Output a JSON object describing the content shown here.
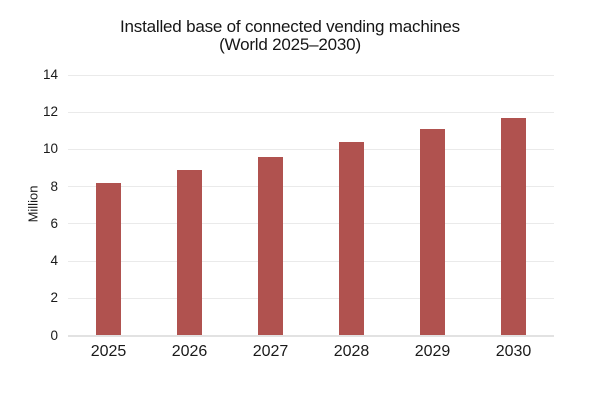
{
  "chart": {
    "title_line1": "Installed base of connected vending machines",
    "title_line2": "(World 2025–2030)"
  },
  "chart_data": {
    "type": "bar",
    "title": "Installed base of connected vending machines (World 2025–2030)",
    "categories": [
      "2025",
      "2026",
      "2027",
      "2028",
      "2029",
      "2030"
    ],
    "values": [
      8.2,
      8.9,
      9.6,
      10.4,
      11.1,
      11.7
    ],
    "xlabel": "",
    "ylabel": "Million",
    "ylim": [
      0,
      14
    ],
    "yticks": [
      0,
      2,
      4,
      6,
      8,
      10,
      12,
      14
    ],
    "grid": true,
    "legend": false,
    "bar_color": "#b0524f"
  },
  "colors": {
    "bar": "#b0524f",
    "gridline": "#eaeaea",
    "baseline": "#e2e2e2",
    "text": "#1a1a1a",
    "background": "#ffffff"
  }
}
